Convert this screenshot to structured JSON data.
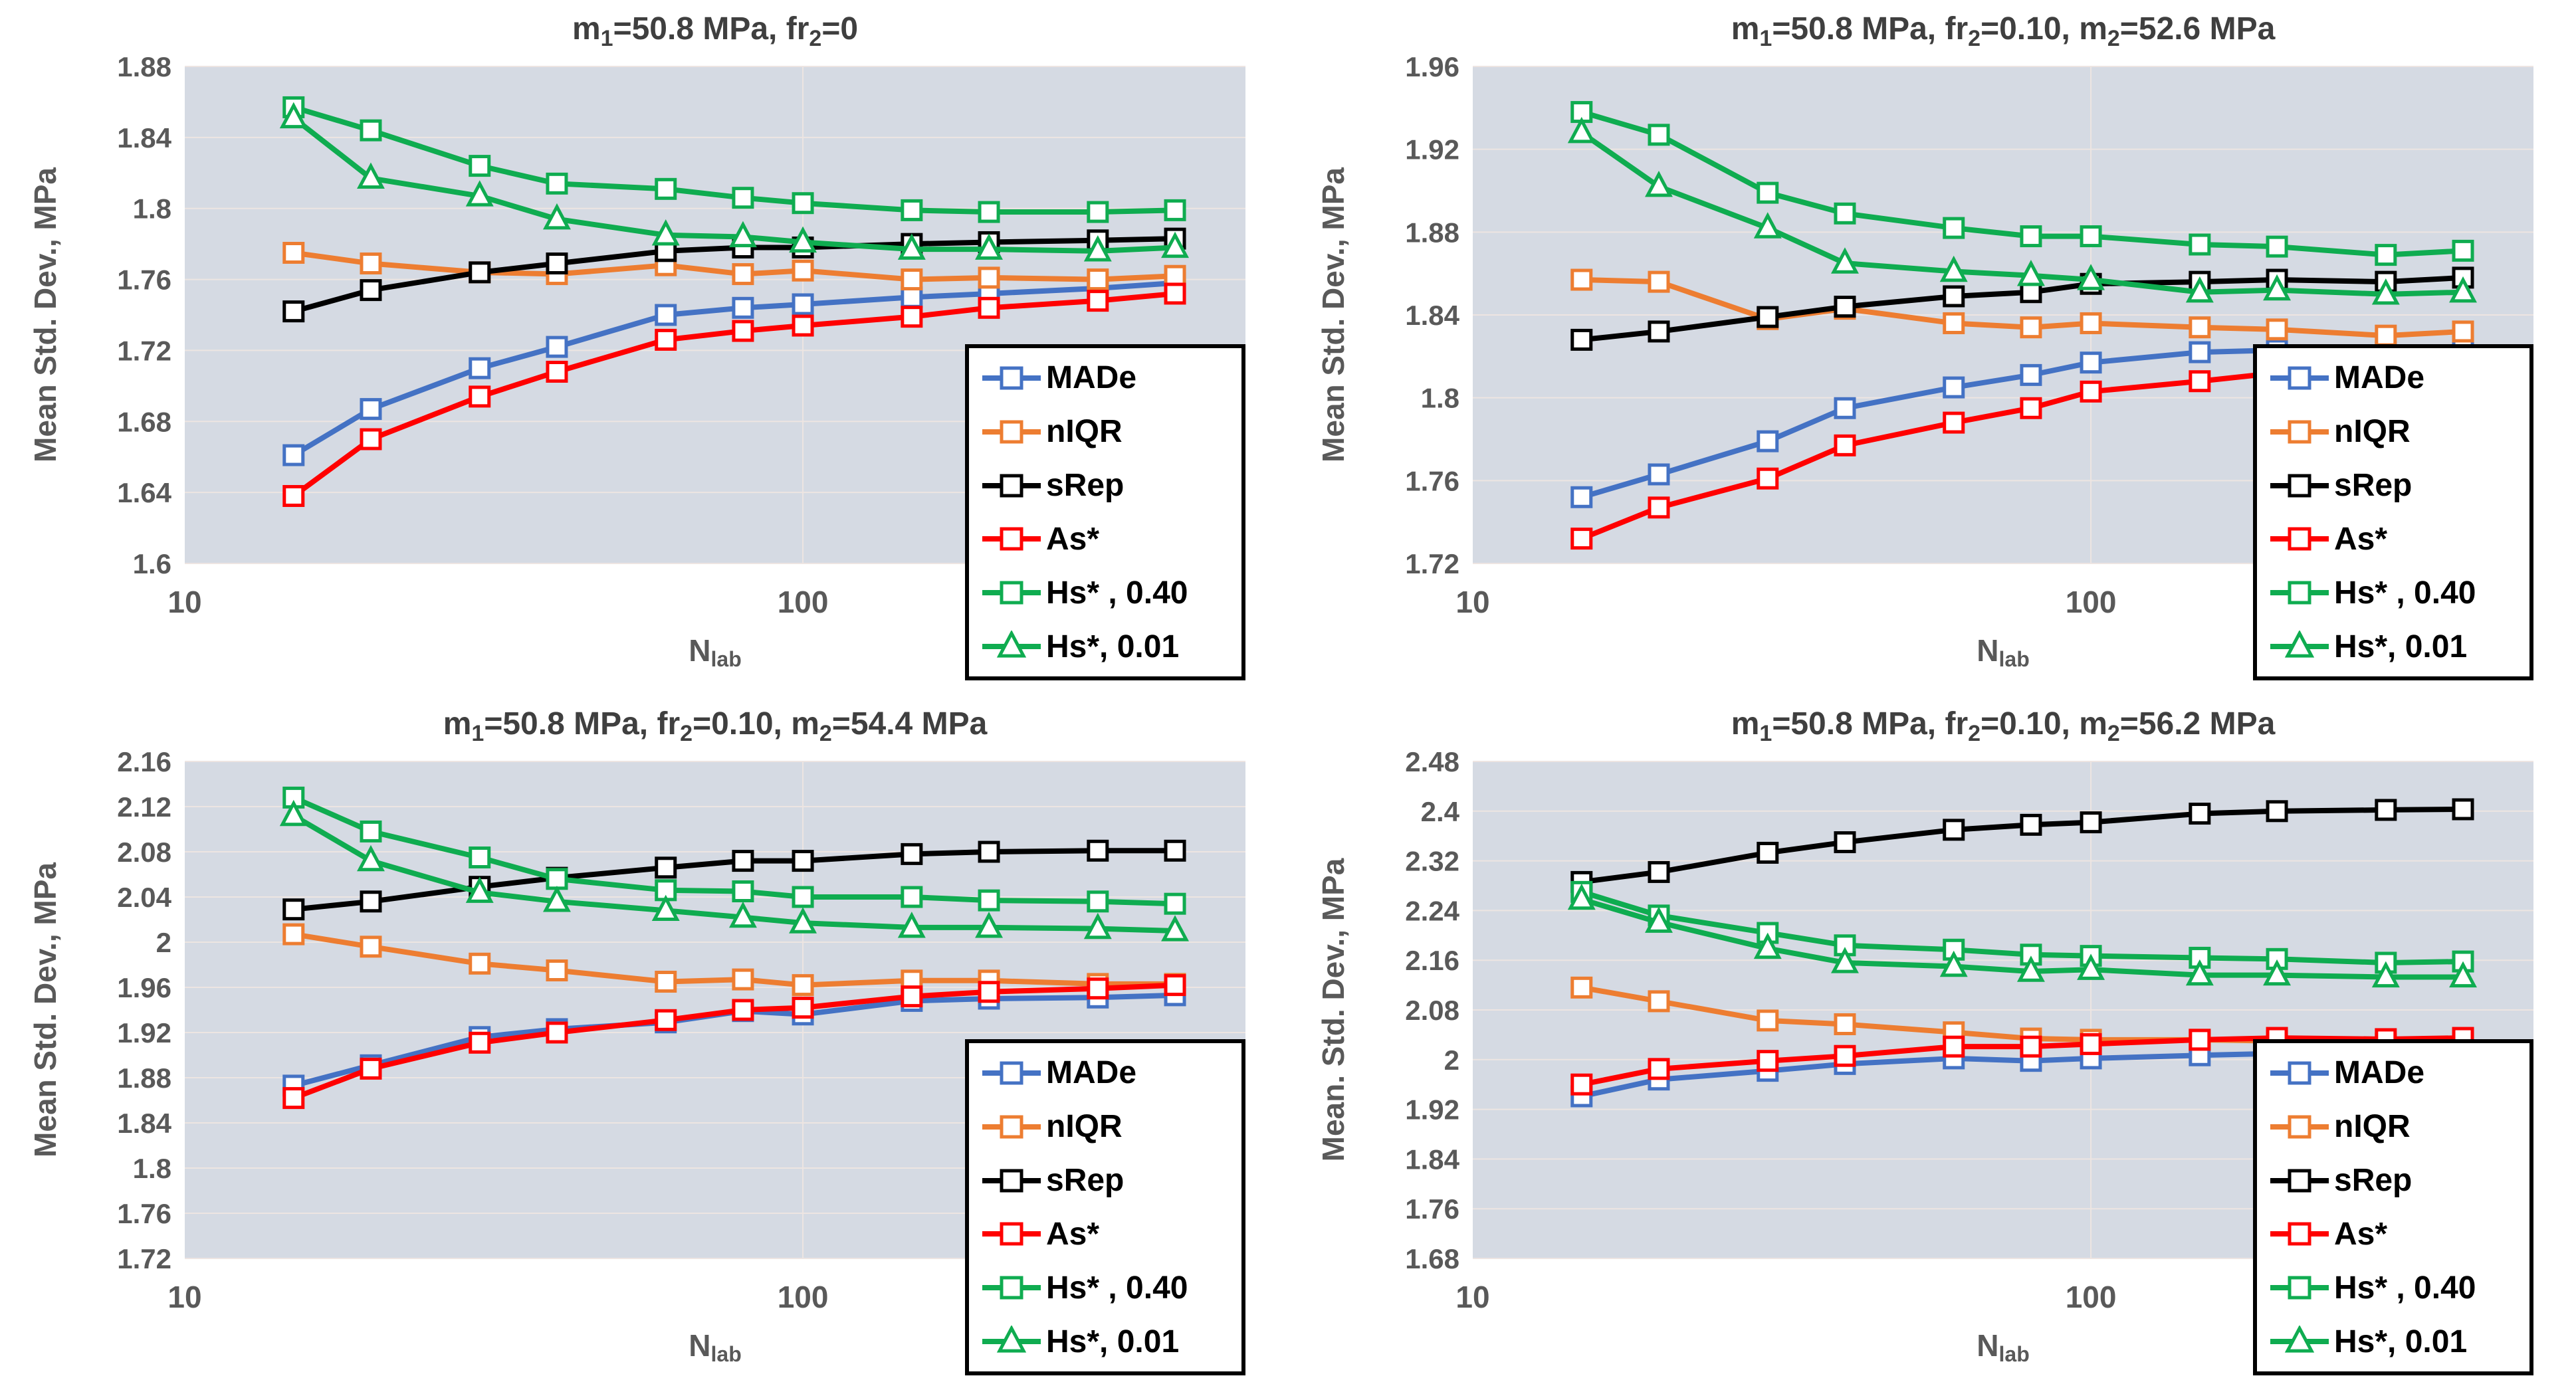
{
  "colors": {
    "blue": "#4472C4",
    "orange": "#ED7D31",
    "black": "#000000",
    "red": "#FF0000",
    "green": "#0FAC50",
    "axis_text": "#595959",
    "title_text": "#3F3F3F",
    "plot_bg": "#D5DAE3",
    "grid": "#EDE5E2",
    "legend_bg": "#FFFFFF",
    "legend_border": "#000000",
    "marker_fill": "#FFFFFF"
  },
  "xlabel": {
    "main": "N",
    "sub": "lab"
  },
  "legend_entries": [
    {
      "label": "MADe",
      "color": "#4472C4",
      "marker": "square"
    },
    {
      "label": "nIQR",
      "color": "#ED7D31",
      "marker": "square"
    },
    {
      "label": "sRep",
      "color": "#000000",
      "marker": "square"
    },
    {
      "label": "As*",
      "color": "#FF0000",
      "marker": "square"
    },
    {
      "label": "Hs* , 0.40",
      "color": "#0FAC50",
      "marker": "square"
    },
    {
      "label": "Hs*, 0.01",
      "color": "#0FAC50",
      "marker": "triangle"
    }
  ],
  "chart_data": [
    {
      "type": "line",
      "xscale": "log",
      "title_text": "m1=50.8 MPa, fr2=0",
      "title_parts": [
        {
          "t": "m"
        },
        {
          "sub": "1"
        },
        {
          "t": "=50.8 MPa, fr"
        },
        {
          "sub": "2"
        },
        {
          "t": "=0"
        }
      ],
      "ylabel": "Mean Std. Dev., MPa",
      "xlim": [
        10,
        520
      ],
      "ylim": [
        1.6,
        1.88
      ],
      "xticks": [
        {
          "v": 10,
          "label": "10"
        },
        {
          "v": 100,
          "label": "100"
        }
      ],
      "yticks": [
        {
          "v": 1.6,
          "label": "1.6"
        },
        {
          "v": 1.64,
          "label": "1.64"
        },
        {
          "v": 1.68,
          "label": "1.68"
        },
        {
          "v": 1.72,
          "label": "1.72"
        },
        {
          "v": 1.76,
          "label": "1.76"
        },
        {
          "v": 1.8,
          "label": "1.8"
        },
        {
          "v": 1.84,
          "label": "1.84"
        },
        {
          "v": 1.88,
          "label": "1.88"
        }
      ],
      "x": [
        15,
        20,
        30,
        40,
        60,
        80,
        100,
        150,
        200,
        300,
        400
      ],
      "series": [
        {
          "name": "MADe",
          "color": "#4472C4",
          "marker": "square",
          "values": [
            1.661,
            1.687,
            1.71,
            1.722,
            1.74,
            1.744,
            1.746,
            1.75,
            1.752,
            1.755,
            1.758
          ]
        },
        {
          "name": "nIQR",
          "color": "#ED7D31",
          "marker": "square",
          "values": [
            1.775,
            1.769,
            1.764,
            1.763,
            1.768,
            1.763,
            1.765,
            1.76,
            1.761,
            1.76,
            1.762
          ]
        },
        {
          "name": "sRep",
          "color": "#000000",
          "marker": "square",
          "values": [
            1.742,
            1.754,
            1.764,
            1.769,
            1.776,
            1.778,
            1.778,
            1.78,
            1.781,
            1.782,
            1.783
          ]
        },
        {
          "name": "As*",
          "color": "#FF0000",
          "marker": "square",
          "values": [
            1.638,
            1.67,
            1.694,
            1.708,
            1.726,
            1.731,
            1.734,
            1.739,
            1.744,
            1.748,
            1.752
          ]
        },
        {
          "name": "Hs* , 0.40",
          "color": "#0FAC50",
          "marker": "square",
          "values": [
            1.857,
            1.844,
            1.824,
            1.814,
            1.811,
            1.806,
            1.803,
            1.799,
            1.798,
            1.798,
            1.799
          ]
        },
        {
          "name": "Hs*, 0.01",
          "color": "#0FAC50",
          "marker": "triangle",
          "values": [
            1.851,
            1.817,
            1.807,
            1.794,
            1.785,
            1.784,
            1.781,
            1.777,
            1.777,
            1.776,
            1.778
          ]
        }
      ]
    },
    {
      "type": "line",
      "xscale": "log",
      "title_text": "m1=50.8 MPa, fr2=0.10, m2=52.6 MPa",
      "title_parts": [
        {
          "t": "m"
        },
        {
          "sub": "1"
        },
        {
          "t": "=50.8 MPa, fr"
        },
        {
          "sub": "2"
        },
        {
          "t": "=0.10, m"
        },
        {
          "sub": "2"
        },
        {
          "t": "=52.6 MPa"
        }
      ],
      "ylabel": "Mean Std. Dev., MPa",
      "xlim": [
        10,
        520
      ],
      "ylim": [
        1.72,
        1.96
      ],
      "xticks": [
        {
          "v": 10,
          "label": "10"
        },
        {
          "v": 100,
          "label": "100"
        }
      ],
      "yticks": [
        {
          "v": 1.72,
          "label": "1.72"
        },
        {
          "v": 1.76,
          "label": "1.76"
        },
        {
          "v": 1.8,
          "label": "1.8"
        },
        {
          "v": 1.84,
          "label": "1.84"
        },
        {
          "v": 1.88,
          "label": "1.88"
        },
        {
          "v": 1.92,
          "label": "1.92"
        },
        {
          "v": 1.96,
          "label": "1.96"
        }
      ],
      "x": [
        15,
        20,
        30,
        40,
        60,
        80,
        100,
        150,
        200,
        300,
        400
      ],
      "series": [
        {
          "name": "MADe",
          "color": "#4472C4",
          "marker": "square",
          "values": [
            1.752,
            1.763,
            1.779,
            1.795,
            1.805,
            1.811,
            1.817,
            1.822,
            1.823,
            1.822,
            1.825
          ]
        },
        {
          "name": "nIQR",
          "color": "#ED7D31",
          "marker": "square",
          "values": [
            1.857,
            1.856,
            1.838,
            1.843,
            1.836,
            1.834,
            1.836,
            1.834,
            1.833,
            1.83,
            1.832
          ]
        },
        {
          "name": "sRep",
          "color": "#000000",
          "marker": "square",
          "values": [
            1.828,
            1.832,
            1.839,
            1.844,
            1.849,
            1.851,
            1.855,
            1.856,
            1.857,
            1.856,
            1.858
          ]
        },
        {
          "name": "As*",
          "color": "#FF0000",
          "marker": "square",
          "values": [
            1.732,
            1.747,
            1.761,
            1.777,
            1.788,
            1.795,
            1.803,
            1.808,
            1.812,
            1.814,
            1.817
          ]
        },
        {
          "name": "Hs* , 0.40",
          "color": "#0FAC50",
          "marker": "square",
          "values": [
            1.938,
            1.927,
            1.899,
            1.889,
            1.882,
            1.878,
            1.878,
            1.874,
            1.873,
            1.869,
            1.871
          ]
        },
        {
          "name": "Hs*, 0.01",
          "color": "#0FAC50",
          "marker": "triangle",
          "values": [
            1.928,
            1.902,
            1.882,
            1.865,
            1.861,
            1.859,
            1.857,
            1.851,
            1.852,
            1.85,
            1.851
          ]
        }
      ]
    },
    {
      "type": "line",
      "xscale": "log",
      "title_text": "m1=50.8 MPa, fr2=0.10, m2=54.4 MPa",
      "title_parts": [
        {
          "t": "m"
        },
        {
          "sub": "1"
        },
        {
          "t": "=50.8 MPa, fr"
        },
        {
          "sub": "2"
        },
        {
          "t": "=0.10, m"
        },
        {
          "sub": "2"
        },
        {
          "t": "=54.4 MPa"
        }
      ],
      "ylabel": "Mean Std. Dev., MPa",
      "xlim": [
        10,
        520
      ],
      "ylim": [
        1.72,
        2.16
      ],
      "xticks": [
        {
          "v": 10,
          "label": "10"
        },
        {
          "v": 100,
          "label": "100"
        }
      ],
      "yticks": [
        {
          "v": 1.72,
          "label": "1.72"
        },
        {
          "v": 1.76,
          "label": "1.76"
        },
        {
          "v": 1.8,
          "label": "1.8"
        },
        {
          "v": 1.84,
          "label": "1.84"
        },
        {
          "v": 1.88,
          "label": "1.88"
        },
        {
          "v": 1.92,
          "label": "1.92"
        },
        {
          "v": 1.96,
          "label": "1.96"
        },
        {
          "v": 2.0,
          "label": "2"
        },
        {
          "v": 2.04,
          "label": "2.04"
        },
        {
          "v": 2.08,
          "label": "2.08"
        },
        {
          "v": 2.12,
          "label": "2.12"
        },
        {
          "v": 2.16,
          "label": "2.16"
        }
      ],
      "x": [
        15,
        20,
        30,
        40,
        60,
        80,
        100,
        150,
        200,
        300,
        400
      ],
      "series": [
        {
          "name": "MADe",
          "color": "#4472C4",
          "marker": "square",
          "values": [
            1.873,
            1.891,
            1.916,
            1.923,
            1.929,
            1.939,
            1.936,
            1.948,
            1.95,
            1.951,
            1.953
          ]
        },
        {
          "name": "nIQR",
          "color": "#ED7D31",
          "marker": "square",
          "values": [
            2.007,
            1.996,
            1.981,
            1.975,
            1.965,
            1.967,
            1.962,
            1.966,
            1.966,
            1.963,
            1.963
          ]
        },
        {
          "name": "sRep",
          "color": "#000000",
          "marker": "square",
          "values": [
            2.029,
            2.036,
            2.049,
            2.057,
            2.066,
            2.072,
            2.072,
            2.078,
            2.08,
            2.081,
            2.081
          ]
        },
        {
          "name": "As*",
          "color": "#FF0000",
          "marker": "square",
          "values": [
            1.862,
            1.888,
            1.911,
            1.92,
            1.931,
            1.94,
            1.942,
            1.952,
            1.956,
            1.959,
            1.962
          ]
        },
        {
          "name": "Hs* , 0.40",
          "color": "#0FAC50",
          "marker": "square",
          "values": [
            2.128,
            2.098,
            2.075,
            2.056,
            2.046,
            2.045,
            2.04,
            2.04,
            2.037,
            2.036,
            2.034
          ]
        },
        {
          "name": "Hs*, 0.01",
          "color": "#0FAC50",
          "marker": "triangle",
          "values": [
            2.112,
            2.072,
            2.044,
            2.036,
            2.028,
            2.022,
            2.017,
            2.013,
            2.013,
            2.012,
            2.01
          ]
        }
      ]
    },
    {
      "type": "line",
      "xscale": "log",
      "title_text": "m1=50.8 MPa, fr2=0.10, m2=56.2 MPa",
      "title_parts": [
        {
          "t": "m"
        },
        {
          "sub": "1"
        },
        {
          "t": "=50.8 MPa, fr"
        },
        {
          "sub": "2"
        },
        {
          "t": "=0.10, m"
        },
        {
          "sub": "2"
        },
        {
          "t": "=56.2 MPa"
        }
      ],
      "ylabel": "Mean. Std. Dev., MPa",
      "xlim": [
        10,
        520
      ],
      "ylim": [
        1.68,
        2.48
      ],
      "xticks": [
        {
          "v": 10,
          "label": "10"
        },
        {
          "v": 100,
          "label": "100"
        }
      ],
      "yticks": [
        {
          "v": 1.68,
          "label": "1.68"
        },
        {
          "v": 1.76,
          "label": "1.76"
        },
        {
          "v": 1.84,
          "label": "1.84"
        },
        {
          "v": 1.92,
          "label": "1.92"
        },
        {
          "v": 2.0,
          "label": "2"
        },
        {
          "v": 2.08,
          "label": "2.08"
        },
        {
          "v": 2.16,
          "label": "2.16"
        },
        {
          "v": 2.24,
          "label": "2.24"
        },
        {
          "v": 2.32,
          "label": "2.32"
        },
        {
          "v": 2.4,
          "label": "2.4"
        },
        {
          "v": 2.48,
          "label": "2.48"
        }
      ],
      "x": [
        15,
        20,
        30,
        40,
        60,
        80,
        100,
        150,
        200,
        300,
        400
      ],
      "series": [
        {
          "name": "MADe",
          "color": "#4472C4",
          "marker": "square",
          "values": [
            1.941,
            1.968,
            1.982,
            1.993,
            2.002,
            1.998,
            2.002,
            2.007,
            2.01,
            2.01,
            2.012
          ]
        },
        {
          "name": "nIQR",
          "color": "#ED7D31",
          "marker": "square",
          "values": [
            2.116,
            2.094,
            2.063,
            2.057,
            2.044,
            2.034,
            2.032,
            2.032,
            2.03,
            2.025,
            2.027
          ]
        },
        {
          "name": "sRep",
          "color": "#000000",
          "marker": "square",
          "values": [
            2.286,
            2.302,
            2.333,
            2.35,
            2.37,
            2.378,
            2.382,
            2.396,
            2.4,
            2.402,
            2.403
          ]
        },
        {
          "name": "As*",
          "color": "#FF0000",
          "marker": "square",
          "values": [
            1.96,
            1.985,
            1.998,
            2.006,
            2.021,
            2.021,
            2.025,
            2.032,
            2.035,
            2.033,
            2.035
          ]
        },
        {
          "name": "Hs* , 0.40",
          "color": "#0FAC50",
          "marker": "square",
          "values": [
            2.27,
            2.232,
            2.204,
            2.184,
            2.177,
            2.169,
            2.167,
            2.164,
            2.162,
            2.156,
            2.158
          ]
        },
        {
          "name": "Hs*, 0.01",
          "color": "#0FAC50",
          "marker": "triangle",
          "values": [
            2.258,
            2.221,
            2.179,
            2.156,
            2.15,
            2.142,
            2.145,
            2.136,
            2.136,
            2.133,
            2.133
          ]
        }
      ]
    }
  ]
}
